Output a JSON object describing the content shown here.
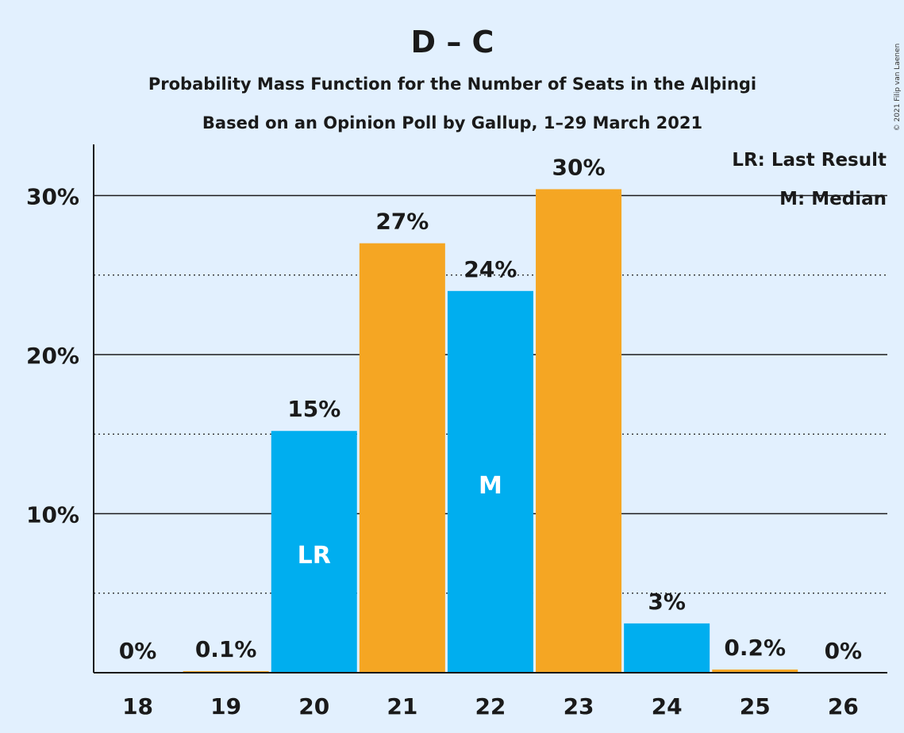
{
  "header": {
    "title": "D – C",
    "subtitle1": "Probability Mass Function for the Number of Seats in the Alþingi",
    "subtitle2": "Based on an Opinion Poll by Gallup, 1–29 March 2021",
    "copyright": "© 2021 Filip van Laenen"
  },
  "legend": {
    "lr": "LR: Last Result",
    "m": "M: Median"
  },
  "colors": {
    "background": "#e2f0fe",
    "blue": "#00aeef",
    "orange": "#f5a623",
    "text": "#1a1a1a"
  },
  "chart_data": {
    "type": "bar",
    "categories": [
      "18",
      "19",
      "20",
      "21",
      "22",
      "23",
      "24",
      "25",
      "26"
    ],
    "values": [
      0,
      0.1,
      15.2,
      27.0,
      24.0,
      30.4,
      3.1,
      0.2,
      0
    ],
    "value_labels": [
      "0%",
      "0.1%",
      "15%",
      "27%",
      "24%",
      "30%",
      "3%",
      "0.2%",
      "0%"
    ],
    "bar_colors": [
      "blue",
      "orange",
      "blue",
      "orange",
      "blue",
      "orange",
      "blue",
      "orange",
      "blue"
    ],
    "inbar_labels": [
      "",
      "",
      "LR",
      "",
      "M",
      "",
      "",
      "",
      ""
    ],
    "y_ticks": [
      10,
      20,
      30
    ],
    "y_tick_labels": [
      "10%",
      "20%",
      "30%"
    ],
    "ylim": [
      0,
      33
    ],
    "grid": true
  }
}
